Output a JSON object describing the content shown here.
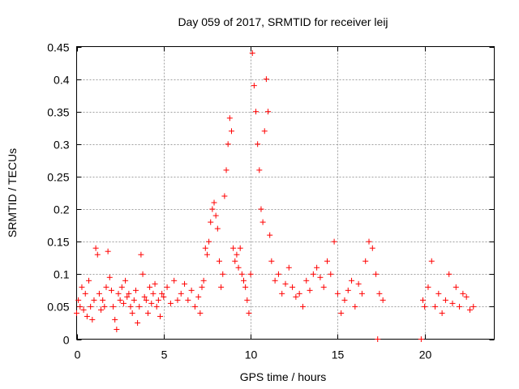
{
  "chart_data": {
    "type": "scatter",
    "title": "Day 059 of 2017, SRMTID for receiver leij",
    "xlabel": "GPS time / hours",
    "ylabel": "SRMTID / TECUs",
    "xlim": [
      0,
      24
    ],
    "ylim": [
      0,
      0.45
    ],
    "xticks": [
      0,
      5,
      10,
      15,
      20
    ],
    "xtick_labels": [
      "0",
      "5",
      "10",
      "15",
      "20"
    ],
    "yticks": [
      0,
      0.05,
      0.1,
      0.15,
      0.2,
      0.25,
      0.3,
      0.35,
      0.4,
      0.45
    ],
    "ytick_labels": [
      "0",
      "0.05",
      "0.1",
      "0.15",
      "0.2",
      "0.25",
      "0.3",
      "0.35",
      "0.4",
      "0.45"
    ],
    "grid": true,
    "marker": "+",
    "color": "#ff0000",
    "series": [
      {
        "name": "SRMTID",
        "points": [
          [
            0.0,
            0.04
          ],
          [
            0.1,
            0.06
          ],
          [
            0.2,
            0.05
          ],
          [
            0.3,
            0.08
          ],
          [
            0.4,
            0.045
          ],
          [
            0.5,
            0.07
          ],
          [
            0.6,
            0.035
          ],
          [
            0.7,
            0.09
          ],
          [
            0.8,
            0.05
          ],
          [
            0.9,
            0.03
          ],
          [
            1.0,
            0.06
          ],
          [
            1.1,
            0.14
          ],
          [
            1.2,
            0.13
          ],
          [
            1.3,
            0.07
          ],
          [
            1.4,
            0.045
          ],
          [
            1.5,
            0.06
          ],
          [
            1.6,
            0.05
          ],
          [
            1.7,
            0.08
          ],
          [
            1.8,
            0.135
          ],
          [
            1.9,
            0.095
          ],
          [
            2.0,
            0.075
          ],
          [
            2.1,
            0.05
          ],
          [
            2.2,
            0.03
          ],
          [
            2.3,
            0.015
          ],
          [
            2.4,
            0.07
          ],
          [
            2.5,
            0.06
          ],
          [
            2.6,
            0.08
          ],
          [
            2.7,
            0.055
          ],
          [
            2.8,
            0.09
          ],
          [
            2.9,
            0.065
          ],
          [
            3.0,
            0.07
          ],
          [
            3.1,
            0.05
          ],
          [
            3.2,
            0.04
          ],
          [
            3.3,
            0.06
          ],
          [
            3.4,
            0.075
          ],
          [
            3.5,
            0.025
          ],
          [
            3.6,
            0.05
          ],
          [
            3.7,
            0.13
          ],
          [
            3.8,
            0.1
          ],
          [
            3.9,
            0.065
          ],
          [
            4.0,
            0.06
          ],
          [
            4.1,
            0.04
          ],
          [
            4.2,
            0.08
          ],
          [
            4.3,
            0.055
          ],
          [
            4.4,
            0.07
          ],
          [
            4.5,
            0.085
          ],
          [
            4.6,
            0.05
          ],
          [
            4.7,
            0.06
          ],
          [
            4.8,
            0.035
          ],
          [
            4.9,
            0.07
          ],
          [
            5.0,
            0.065
          ],
          [
            5.2,
            0.08
          ],
          [
            5.4,
            0.055
          ],
          [
            5.6,
            0.09
          ],
          [
            5.8,
            0.06
          ],
          [
            6.0,
            0.07
          ],
          [
            6.2,
            0.085
          ],
          [
            6.4,
            0.06
          ],
          [
            6.6,
            0.075
          ],
          [
            6.8,
            0.05
          ],
          [
            7.0,
            0.065
          ],
          [
            7.1,
            0.04
          ],
          [
            7.2,
            0.08
          ],
          [
            7.3,
            0.09
          ],
          [
            7.4,
            0.14
          ],
          [
            7.5,
            0.13
          ],
          [
            7.6,
            0.15
          ],
          [
            7.7,
            0.18
          ],
          [
            7.8,
            0.2
          ],
          [
            7.9,
            0.21
          ],
          [
            8.0,
            0.19
          ],
          [
            8.1,
            0.17
          ],
          [
            8.2,
            0.12
          ],
          [
            8.3,
            0.08
          ],
          [
            8.4,
            0.1
          ],
          [
            8.5,
            0.22
          ],
          [
            8.6,
            0.26
          ],
          [
            8.7,
            0.3
          ],
          [
            8.8,
            0.34
          ],
          [
            8.9,
            0.32
          ],
          [
            9.0,
            0.14
          ],
          [
            9.1,
            0.12
          ],
          [
            9.2,
            0.13
          ],
          [
            9.3,
            0.11
          ],
          [
            9.4,
            0.14
          ],
          [
            9.5,
            0.1
          ],
          [
            9.6,
            0.09
          ],
          [
            9.7,
            0.08
          ],
          [
            9.8,
            0.06
          ],
          [
            9.9,
            0.04
          ],
          [
            10.0,
            0.1
          ],
          [
            10.1,
            0.44
          ],
          [
            10.2,
            0.39
          ],
          [
            10.3,
            0.35
          ],
          [
            10.4,
            0.3
          ],
          [
            10.5,
            0.26
          ],
          [
            10.6,
            0.2
          ],
          [
            10.7,
            0.18
          ],
          [
            10.8,
            0.32
          ],
          [
            10.9,
            0.4
          ],
          [
            11.0,
            0.35
          ],
          [
            11.1,
            0.16
          ],
          [
            11.2,
            0.12
          ],
          [
            11.4,
            0.09
          ],
          [
            11.6,
            0.1
          ],
          [
            11.8,
            0.07
          ],
          [
            12.0,
            0.085
          ],
          [
            12.2,
            0.11
          ],
          [
            12.4,
            0.08
          ],
          [
            12.6,
            0.065
          ],
          [
            12.8,
            0.07
          ],
          [
            13.0,
            0.05
          ],
          [
            13.2,
            0.09
          ],
          [
            13.4,
            0.075
          ],
          [
            13.6,
            0.1
          ],
          [
            13.8,
            0.11
          ],
          [
            14.0,
            0.095
          ],
          [
            14.2,
            0.08
          ],
          [
            14.4,
            0.12
          ],
          [
            14.6,
            0.1
          ],
          [
            14.8,
            0.15
          ],
          [
            15.0,
            0.07
          ],
          [
            15.2,
            0.04
          ],
          [
            15.4,
            0.06
          ],
          [
            15.6,
            0.075
          ],
          [
            15.8,
            0.09
          ],
          [
            16.0,
            0.05
          ],
          [
            16.2,
            0.085
          ],
          [
            16.4,
            0.07
          ],
          [
            16.6,
            0.12
          ],
          [
            16.8,
            0.15
          ],
          [
            17.0,
            0.14
          ],
          [
            17.2,
            0.1
          ],
          [
            17.3,
            0.0
          ],
          [
            17.4,
            0.07
          ],
          [
            17.6,
            0.06
          ],
          [
            19.8,
            0.0
          ],
          [
            19.9,
            0.06
          ],
          [
            20.0,
            0.05
          ],
          [
            20.2,
            0.08
          ],
          [
            20.4,
            0.12
          ],
          [
            20.6,
            0.05
          ],
          [
            20.8,
            0.07
          ],
          [
            21.0,
            0.04
          ],
          [
            21.2,
            0.06
          ],
          [
            21.4,
            0.1
          ],
          [
            21.6,
            0.055
          ],
          [
            21.8,
            0.08
          ],
          [
            22.0,
            0.05
          ],
          [
            22.2,
            0.07
          ],
          [
            22.4,
            0.065
          ],
          [
            22.6,
            0.045
          ],
          [
            22.8,
            0.05
          ]
        ]
      }
    ]
  }
}
